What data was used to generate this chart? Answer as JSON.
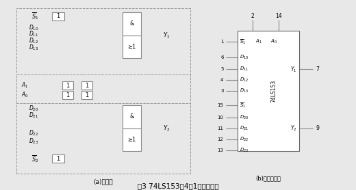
{
  "title": "图3 74LS153双4选1数据选择器",
  "subtitle_a": "(a)电路图",
  "subtitle_b": "(b)引脚功能图",
  "bg_color": "#e8e8e8",
  "line_color": "#888888",
  "box_color": "#ffffff",
  "text_color": "#000000",
  "dash_color": "#999999"
}
